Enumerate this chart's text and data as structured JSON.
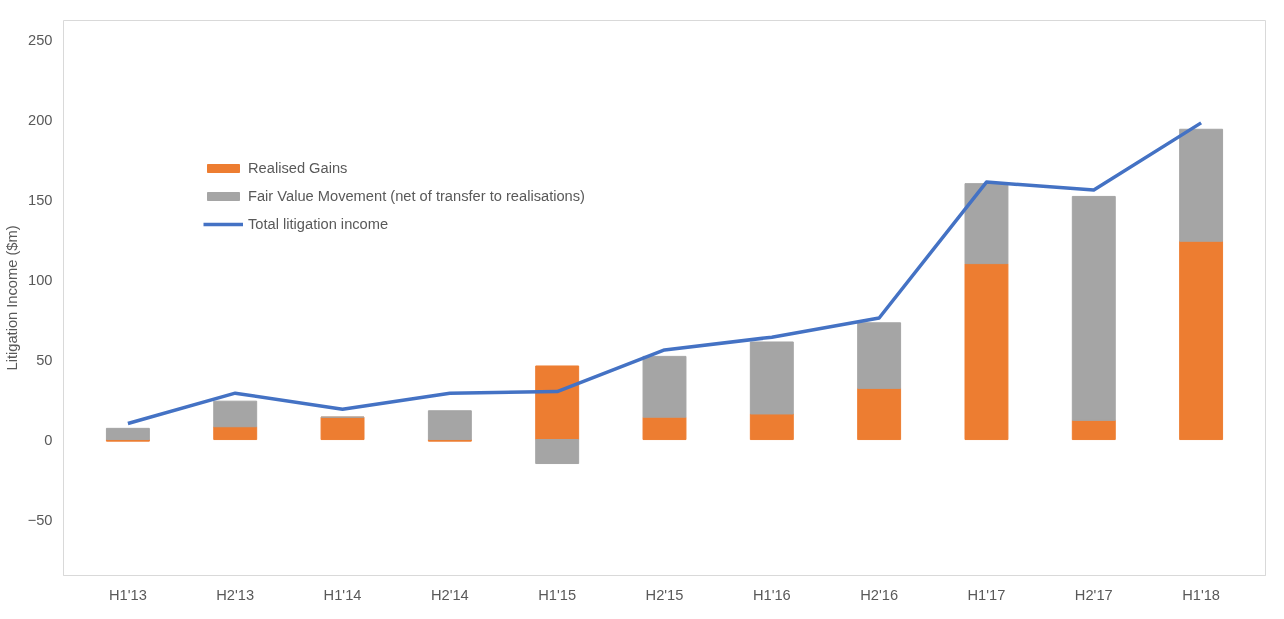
{
  "chart_data": {
    "type": "bar",
    "stacked": true,
    "ylabel": "Litigation Income ($m)",
    "categories": [
      "H1'13",
      "H2'13",
      "H1'14",
      "H2'14",
      "H1'15",
      "H2'15",
      "H1'16",
      "H2'16",
      "H1'17",
      "H2'17",
      "H1'18"
    ],
    "series": [
      {
        "name": "Realised Gains",
        "color": "#ed7d31",
        "values": [
          -1,
          8,
          14,
          -1,
          46,
          14,
          16,
          32,
          110,
          12,
          124
        ]
      },
      {
        "name": "Fair Value Movement (net of transfer to realisations)",
        "color": "#a5a5a5",
        "values": [
          7,
          16,
          0,
          18,
          -15,
          38,
          45,
          41,
          50,
          140,
          70
        ]
      },
      {
        "name": "Total litigation income",
        "type": "line",
        "color": "#4472c4",
        "values": [
          10,
          29,
          19,
          29,
          30,
          56,
          64,
          76,
          161,
          156,
          198
        ]
      }
    ],
    "ylim": [
      -85,
      262
    ],
    "yticks": [
      -50,
      0,
      50,
      100,
      150,
      200,
      250
    ],
    "grid": false,
    "legend": "top left"
  }
}
